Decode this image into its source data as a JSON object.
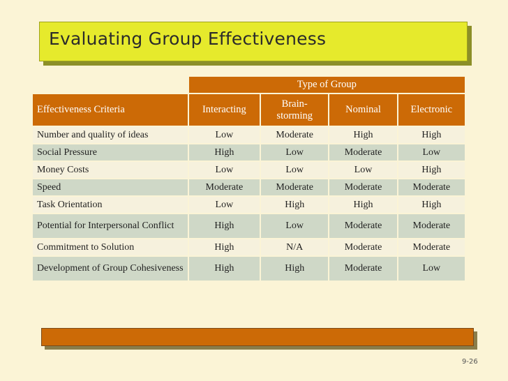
{
  "slide": {
    "title": "Evaluating Group Effectiveness",
    "page_number": "9-26"
  },
  "table": {
    "group_header": "Type of Group",
    "criteria_header": "Effectiveness Criteria",
    "columns": [
      "Interacting",
      "Brain-storming",
      "Nominal",
      "Electronic"
    ],
    "rows": [
      {
        "criterion": "Number and quality of ideas",
        "values": [
          "Low",
          "Moderate",
          "High",
          "High"
        ]
      },
      {
        "criterion": "Social Pressure",
        "values": [
          "High",
          "Low",
          "Moderate",
          "Low"
        ]
      },
      {
        "criterion": "Money Costs",
        "values": [
          "Low",
          "Low",
          "Low",
          "High"
        ]
      },
      {
        "criterion": "Speed",
        "values": [
          "Moderate",
          "Moderate",
          "Moderate",
          "Moderate"
        ]
      },
      {
        "criterion": "Task Orientation",
        "values": [
          "Low",
          "High",
          "High",
          "High"
        ]
      },
      {
        "criterion": "Potential for Interpersonal Conflict",
        "values": [
          "High",
          "Low",
          "Moderate",
          "Moderate"
        ]
      },
      {
        "criterion": "Commitment to Solution",
        "values": [
          "High",
          "N/A",
          "Moderate",
          "Moderate"
        ]
      },
      {
        "criterion": "Development of Group Cohesiveness",
        "values": [
          "High",
          "High",
          "Moderate",
          "Low"
        ]
      }
    ]
  },
  "colors": {
    "title_bar": "#e6ea2c",
    "header": "#cc6a06",
    "row_light": "#f6f1dd",
    "row_dark": "#cfd8c7",
    "background": "#fbf4d6"
  }
}
